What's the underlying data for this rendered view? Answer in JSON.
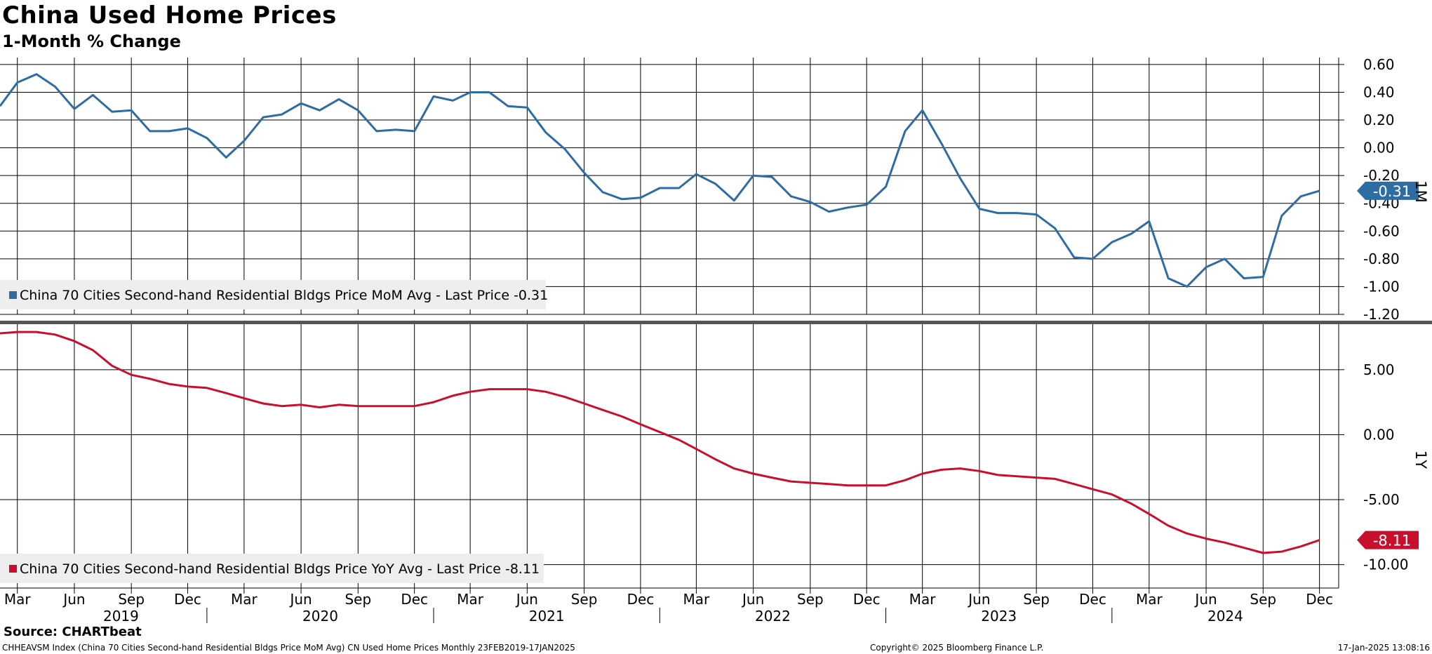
{
  "header": {
    "title": "China Used Home Prices",
    "subtitle": "1-Month % Change"
  },
  "footer": {
    "source": "Source: CHARTbeat",
    "index_info": "CHHEAVSM Index (China 70 Cities  Second-hand Residential Bldgs Price MoM Avg) CN Used Home Prices  Monthly 23FEB2019-17JAN2025",
    "copyright": "Copyright© 2025 Bloomberg Finance L.P.",
    "timestamp": "17-Jan-2025 13:08:16"
  },
  "chart_data": [
    {
      "type": "line",
      "panel_label": "1M",
      "ylim": [
        -1.2,
        0.65
      ],
      "yticks": [
        "0.60",
        "0.40",
        "0.20",
        "0.00",
        "-0.20",
        "-0.40",
        "-0.60",
        "-0.80",
        "-1.00",
        "-1.20"
      ],
      "grid": true,
      "legend_position": "bottom-left",
      "series": [
        {
          "name": "China 70 Cities Second-hand Residential Bldgs Price MoM Avg - Last Price -0.31",
          "color": "#2e6ca4",
          "last_value": "-0.31",
          "x": [
            "2019-02",
            "2019-03",
            "2019-04",
            "2019-05",
            "2019-06",
            "2019-07",
            "2019-08",
            "2019-09",
            "2019-10",
            "2019-11",
            "2019-12",
            "2020-01",
            "2020-02",
            "2020-03",
            "2020-04",
            "2020-05",
            "2020-06",
            "2020-07",
            "2020-08",
            "2020-09",
            "2020-10",
            "2020-11",
            "2020-12",
            "2021-01",
            "2021-02",
            "2021-03",
            "2021-04",
            "2021-05",
            "2021-06",
            "2021-07",
            "2021-08",
            "2021-09",
            "2021-10",
            "2021-11",
            "2021-12",
            "2022-01",
            "2022-02",
            "2022-03",
            "2022-04",
            "2022-05",
            "2022-06",
            "2022-07",
            "2022-08",
            "2022-09",
            "2022-10",
            "2022-11",
            "2022-12",
            "2023-01",
            "2023-02",
            "2023-03",
            "2023-04",
            "2023-05",
            "2023-06",
            "2023-07",
            "2023-08",
            "2023-09",
            "2023-10",
            "2023-11",
            "2023-12",
            "2024-01",
            "2024-02",
            "2024-03",
            "2024-04",
            "2024-05",
            "2024-06",
            "2024-07",
            "2024-08",
            "2024-09",
            "2024-10",
            "2024-11",
            "2024-12"
          ],
          "values": [
            0.3,
            0.47,
            0.53,
            0.44,
            0.28,
            0.38,
            0.26,
            0.27,
            0.12,
            0.12,
            0.14,
            0.07,
            -0.07,
            0.05,
            0.22,
            0.24,
            0.32,
            0.27,
            0.35,
            0.27,
            0.12,
            0.13,
            0.12,
            0.37,
            0.34,
            0.4,
            0.4,
            0.3,
            0.29,
            0.11,
            -0.01,
            -0.18,
            -0.32,
            -0.37,
            -0.36,
            -0.29,
            -0.29,
            -0.19,
            -0.26,
            -0.38,
            -0.2,
            -0.21,
            -0.35,
            -0.39,
            -0.46,
            -0.43,
            -0.41,
            -0.28,
            0.12,
            0.27,
            0.03,
            -0.22,
            -0.44,
            -0.47,
            -0.47,
            -0.48,
            -0.58,
            -0.79,
            -0.8,
            -0.68,
            -0.62,
            -0.53,
            -0.94,
            -1.0,
            -0.86,
            -0.8,
            -0.94,
            -0.93,
            -0.49,
            -0.35,
            -0.31
          ]
        }
      ]
    },
    {
      "type": "line",
      "panel_label": "1Y",
      "ylim": [
        -11.8,
        8.5
      ],
      "yticks": [
        "5.00",
        "0.00",
        "-5.00",
        "-10.00"
      ],
      "grid": true,
      "legend_position": "bottom-left",
      "series": [
        {
          "name": "China 70 Cities Second-hand Residential Bldgs Price YoY Avg - Last Price -8.11",
          "color": "#c8102e",
          "last_value": "-8.11",
          "x": [
            "2019-02",
            "2019-03",
            "2019-04",
            "2019-05",
            "2019-06",
            "2019-07",
            "2019-08",
            "2019-09",
            "2019-10",
            "2019-11",
            "2019-12",
            "2020-01",
            "2020-02",
            "2020-03",
            "2020-04",
            "2020-05",
            "2020-06",
            "2020-07",
            "2020-08",
            "2020-09",
            "2020-10",
            "2020-11",
            "2020-12",
            "2021-01",
            "2021-02",
            "2021-03",
            "2021-04",
            "2021-05",
            "2021-06",
            "2021-07",
            "2021-08",
            "2021-09",
            "2021-10",
            "2021-11",
            "2021-12",
            "2022-01",
            "2022-02",
            "2022-03",
            "2022-04",
            "2022-05",
            "2022-06",
            "2022-07",
            "2022-08",
            "2022-09",
            "2022-10",
            "2022-11",
            "2022-12",
            "2023-01",
            "2023-02",
            "2023-03",
            "2023-04",
            "2023-05",
            "2023-06",
            "2023-07",
            "2023-08",
            "2023-09",
            "2023-10",
            "2023-11",
            "2023-12",
            "2024-01",
            "2024-02",
            "2024-03",
            "2024-04",
            "2024-05",
            "2024-06",
            "2024-07",
            "2024-08",
            "2024-09",
            "2024-10",
            "2024-11",
            "2024-12"
          ],
          "values": [
            7.8,
            7.9,
            7.9,
            7.7,
            7.2,
            6.5,
            5.3,
            4.6,
            4.3,
            3.9,
            3.7,
            3.6,
            3.2,
            2.8,
            2.4,
            2.2,
            2.3,
            2.1,
            2.3,
            2.2,
            2.2,
            2.2,
            2.2,
            2.5,
            3.0,
            3.3,
            3.5,
            3.5,
            3.5,
            3.3,
            2.9,
            2.4,
            1.9,
            1.4,
            0.8,
            0.2,
            -0.4,
            -1.1,
            -1.9,
            -2.6,
            -3.0,
            -3.3,
            -3.6,
            -3.7,
            -3.8,
            -3.9,
            -3.9,
            -3.9,
            -3.5,
            -3.0,
            -2.7,
            -2.6,
            -2.8,
            -3.1,
            -3.2,
            -3.3,
            -3.4,
            -3.8,
            -4.2,
            -4.6,
            -5.3,
            -6.1,
            -7.0,
            -7.6,
            -8.0,
            -8.3,
            -8.7,
            -9.1,
            -9.0,
            -8.6,
            -8.11
          ]
        }
      ]
    }
  ],
  "x_axis": {
    "month_labels": [
      "Mar",
      "Jun",
      "Sep",
      "Dec",
      "Mar",
      "Jun",
      "Sep",
      "Dec",
      "Mar",
      "Jun",
      "Sep",
      "Dec",
      "Mar",
      "Jun",
      "Sep",
      "Dec",
      "Mar",
      "Jun",
      "Sep",
      "Dec",
      "Mar",
      "Jun",
      "Sep",
      "Dec"
    ],
    "month_dates": [
      "2019-03",
      "2019-06",
      "2019-09",
      "2019-12",
      "2020-03",
      "2020-06",
      "2020-09",
      "2020-12",
      "2021-03",
      "2021-06",
      "2021-09",
      "2021-12",
      "2022-03",
      "2022-06",
      "2022-09",
      "2022-12",
      "2023-03",
      "2023-06",
      "2023-09",
      "2023-12",
      "2024-03",
      "2024-06",
      "2024-09",
      "2024-12"
    ],
    "years": [
      "2019",
      "2020",
      "2021",
      "2022",
      "2023",
      "2024"
    ]
  }
}
